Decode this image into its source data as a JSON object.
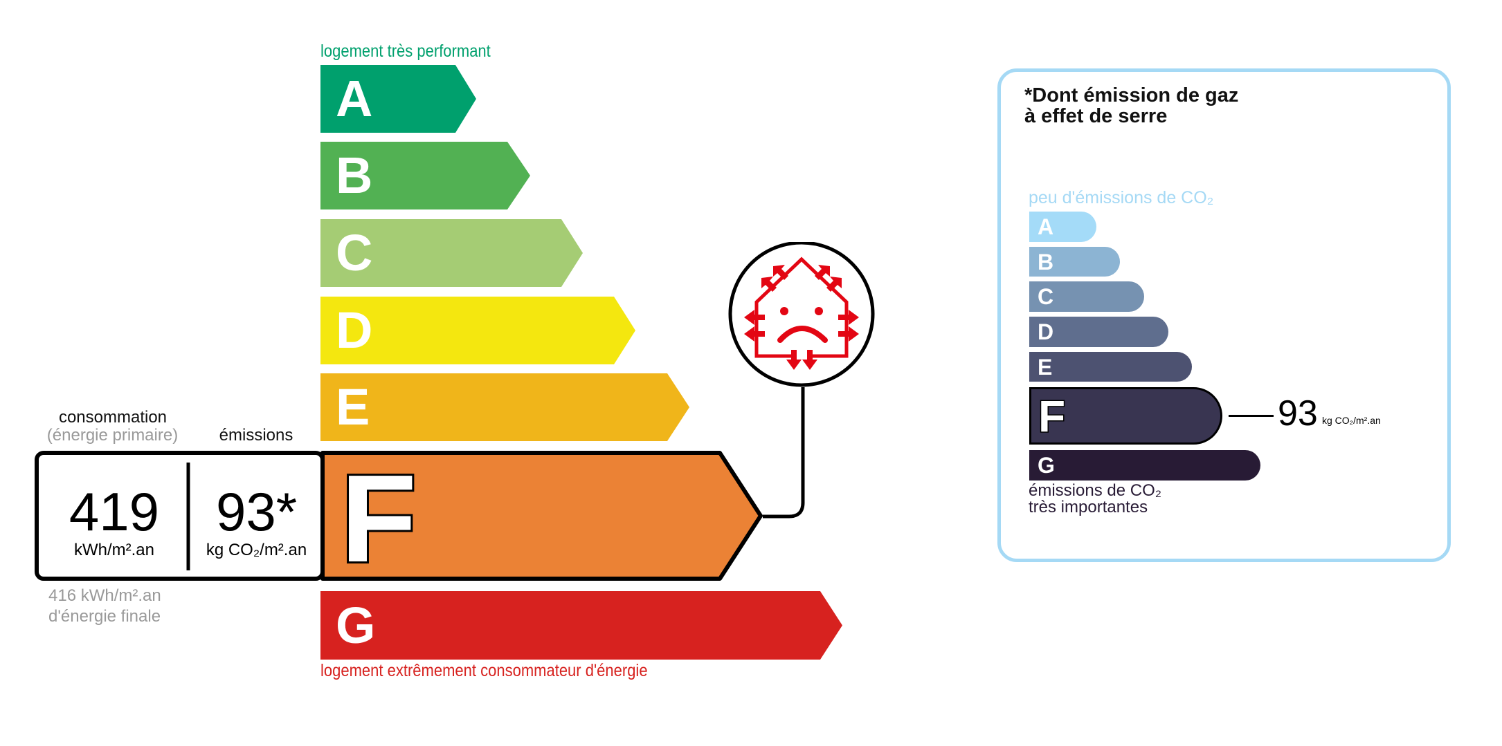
{
  "energy": {
    "top_label": "logement très performant",
    "bottom_label": "logement extrêmement consommateur d'énergie",
    "classes": [
      {
        "letter": "A",
        "color": "#00a06d"
      },
      {
        "letter": "B",
        "color": "#52b153"
      },
      {
        "letter": "C",
        "color": "#a5cc74"
      },
      {
        "letter": "D",
        "color": "#f4e70f"
      },
      {
        "letter": "E",
        "color": "#f0b51a"
      },
      {
        "letter": "F",
        "color": "#eb8235"
      },
      {
        "letter": "G",
        "color": "#d7221f"
      }
    ],
    "current_class": "F",
    "consumption_label": "consommation",
    "consumption_sublabel": "(énergie primaire)",
    "emissions_label": "émissions",
    "consumption_value": "419",
    "consumption_unit": "kWh/m².an",
    "emissions_value": "93*",
    "emissions_unit": "kg CO₂/m².an",
    "final_energy_value": "416 kWh/m².an",
    "final_energy_label": "d'énergie finale",
    "icon": "sad-house-heat-loss-icon",
    "icon_color": "#e30613"
  },
  "ges": {
    "title_line1": "*Dont émission de gaz",
    "title_line2": "à effet de serre",
    "top_label": "peu d'émissions de CO₂",
    "bottom_label_line1": "émissions de CO₂",
    "bottom_label_line2": "très importantes",
    "classes": [
      {
        "letter": "A",
        "color": "#a4dbf8"
      },
      {
        "letter": "B",
        "color": "#8cb4d3"
      },
      {
        "letter": "C",
        "color": "#7692b1"
      },
      {
        "letter": "D",
        "color": "#5f6e8e"
      },
      {
        "letter": "E",
        "color": "#4d5271"
      },
      {
        "letter": "F",
        "color": "#393551"
      },
      {
        "letter": "G",
        "color": "#281b35"
      }
    ],
    "current_class": "F",
    "value": "93",
    "unit": "kg CO₂/m².an",
    "border_color": "#a5d9f5"
  }
}
